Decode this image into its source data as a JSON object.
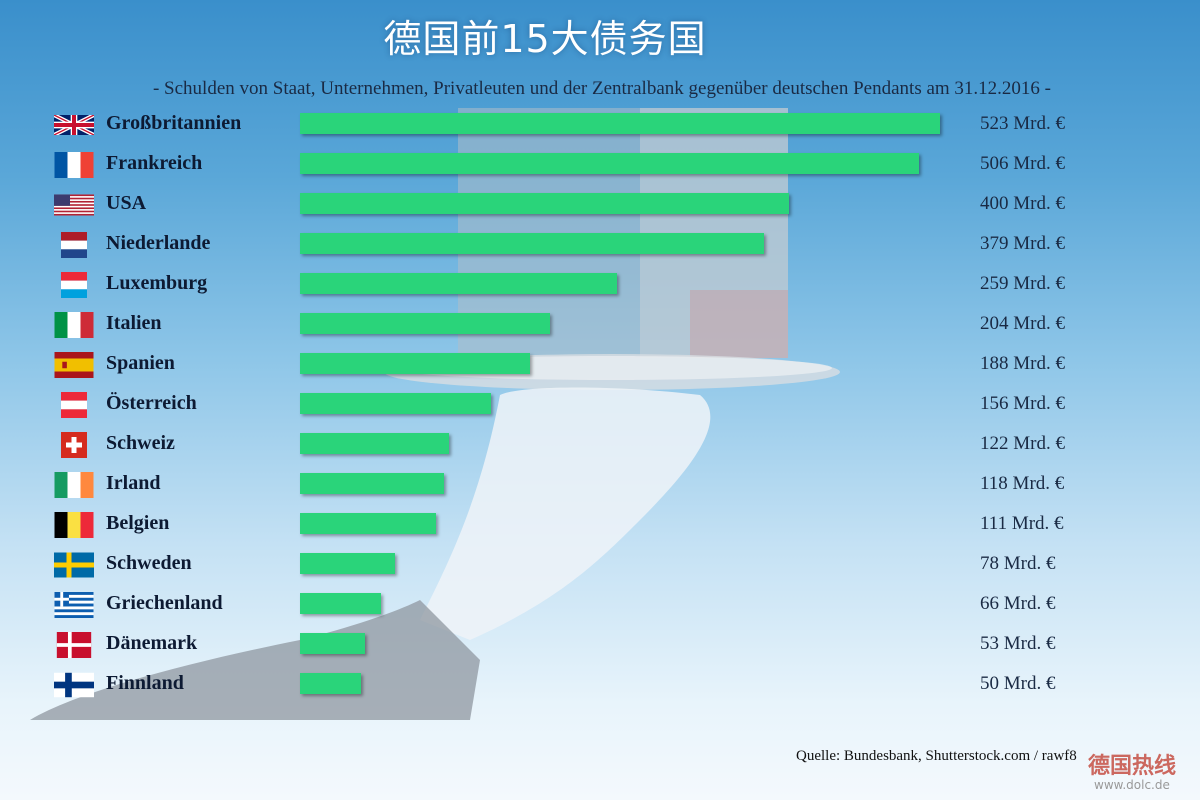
{
  "header": {
    "title": "德国前15大债务国",
    "subtitle": "- Schulden von Staat, Unternehmen, Privatleuten und der Zentralbank gegenüber deutschen Pendants am 31.12.2016 -"
  },
  "chart_data": {
    "type": "bar",
    "orientation": "horizontal",
    "title": "德国前15大债务国",
    "subtitle": "- Schulden von Staat, Unternehmen, Privatleuten und der Zentralbank gegenüber deutschen Pendants am 31.12.2016 -",
    "unit": "Mrd. €",
    "categories": [
      "Großbritannien",
      "Frankreich",
      "USA",
      "Niederlande",
      "Luxemburg",
      "Italien",
      "Spanien",
      "Österreich",
      "Schweiz",
      "Irland",
      "Belgien",
      "Schweden",
      "Griechenland",
      "Dänemark",
      "Finnland"
    ],
    "values": [
      523,
      506,
      400,
      379,
      259,
      204,
      188,
      156,
      122,
      118,
      111,
      78,
      66,
      53,
      50
    ],
    "value_labels": [
      "523 Mrd. €",
      "506 Mrd. €",
      "400 Mrd. €",
      "379 Mrd. €",
      "259 Mrd. €",
      "204 Mrd. €",
      "188 Mrd. €",
      "156 Mrd. €",
      "122 Mrd. €",
      "118 Mrd. €",
      "111 Mrd. €",
      "78 Mrd. €",
      "66 Mrd. €",
      "53 Mrd. €",
      "50 Mrd. €"
    ],
    "flags": [
      "flag-uk-icon",
      "flag-france-icon",
      "flag-usa-icon",
      "flag-netherlands-icon",
      "flag-luxembourg-icon",
      "flag-italy-icon",
      "flag-spain-icon",
      "flag-austria-icon",
      "flag-switzerland-icon",
      "flag-ireland-icon",
      "flag-belgium-icon",
      "flag-sweden-icon",
      "flag-greece-icon",
      "flag-denmark-icon",
      "flag-finland-icon"
    ],
    "bar_color": "#2ad47a",
    "grid": false,
    "legend": "none"
  },
  "footer": {
    "source": "Quelle: Bundesbank, Shutterstock.com / rawf8",
    "watermark": "德国热线",
    "watermark_url": "www.dolc.de"
  }
}
